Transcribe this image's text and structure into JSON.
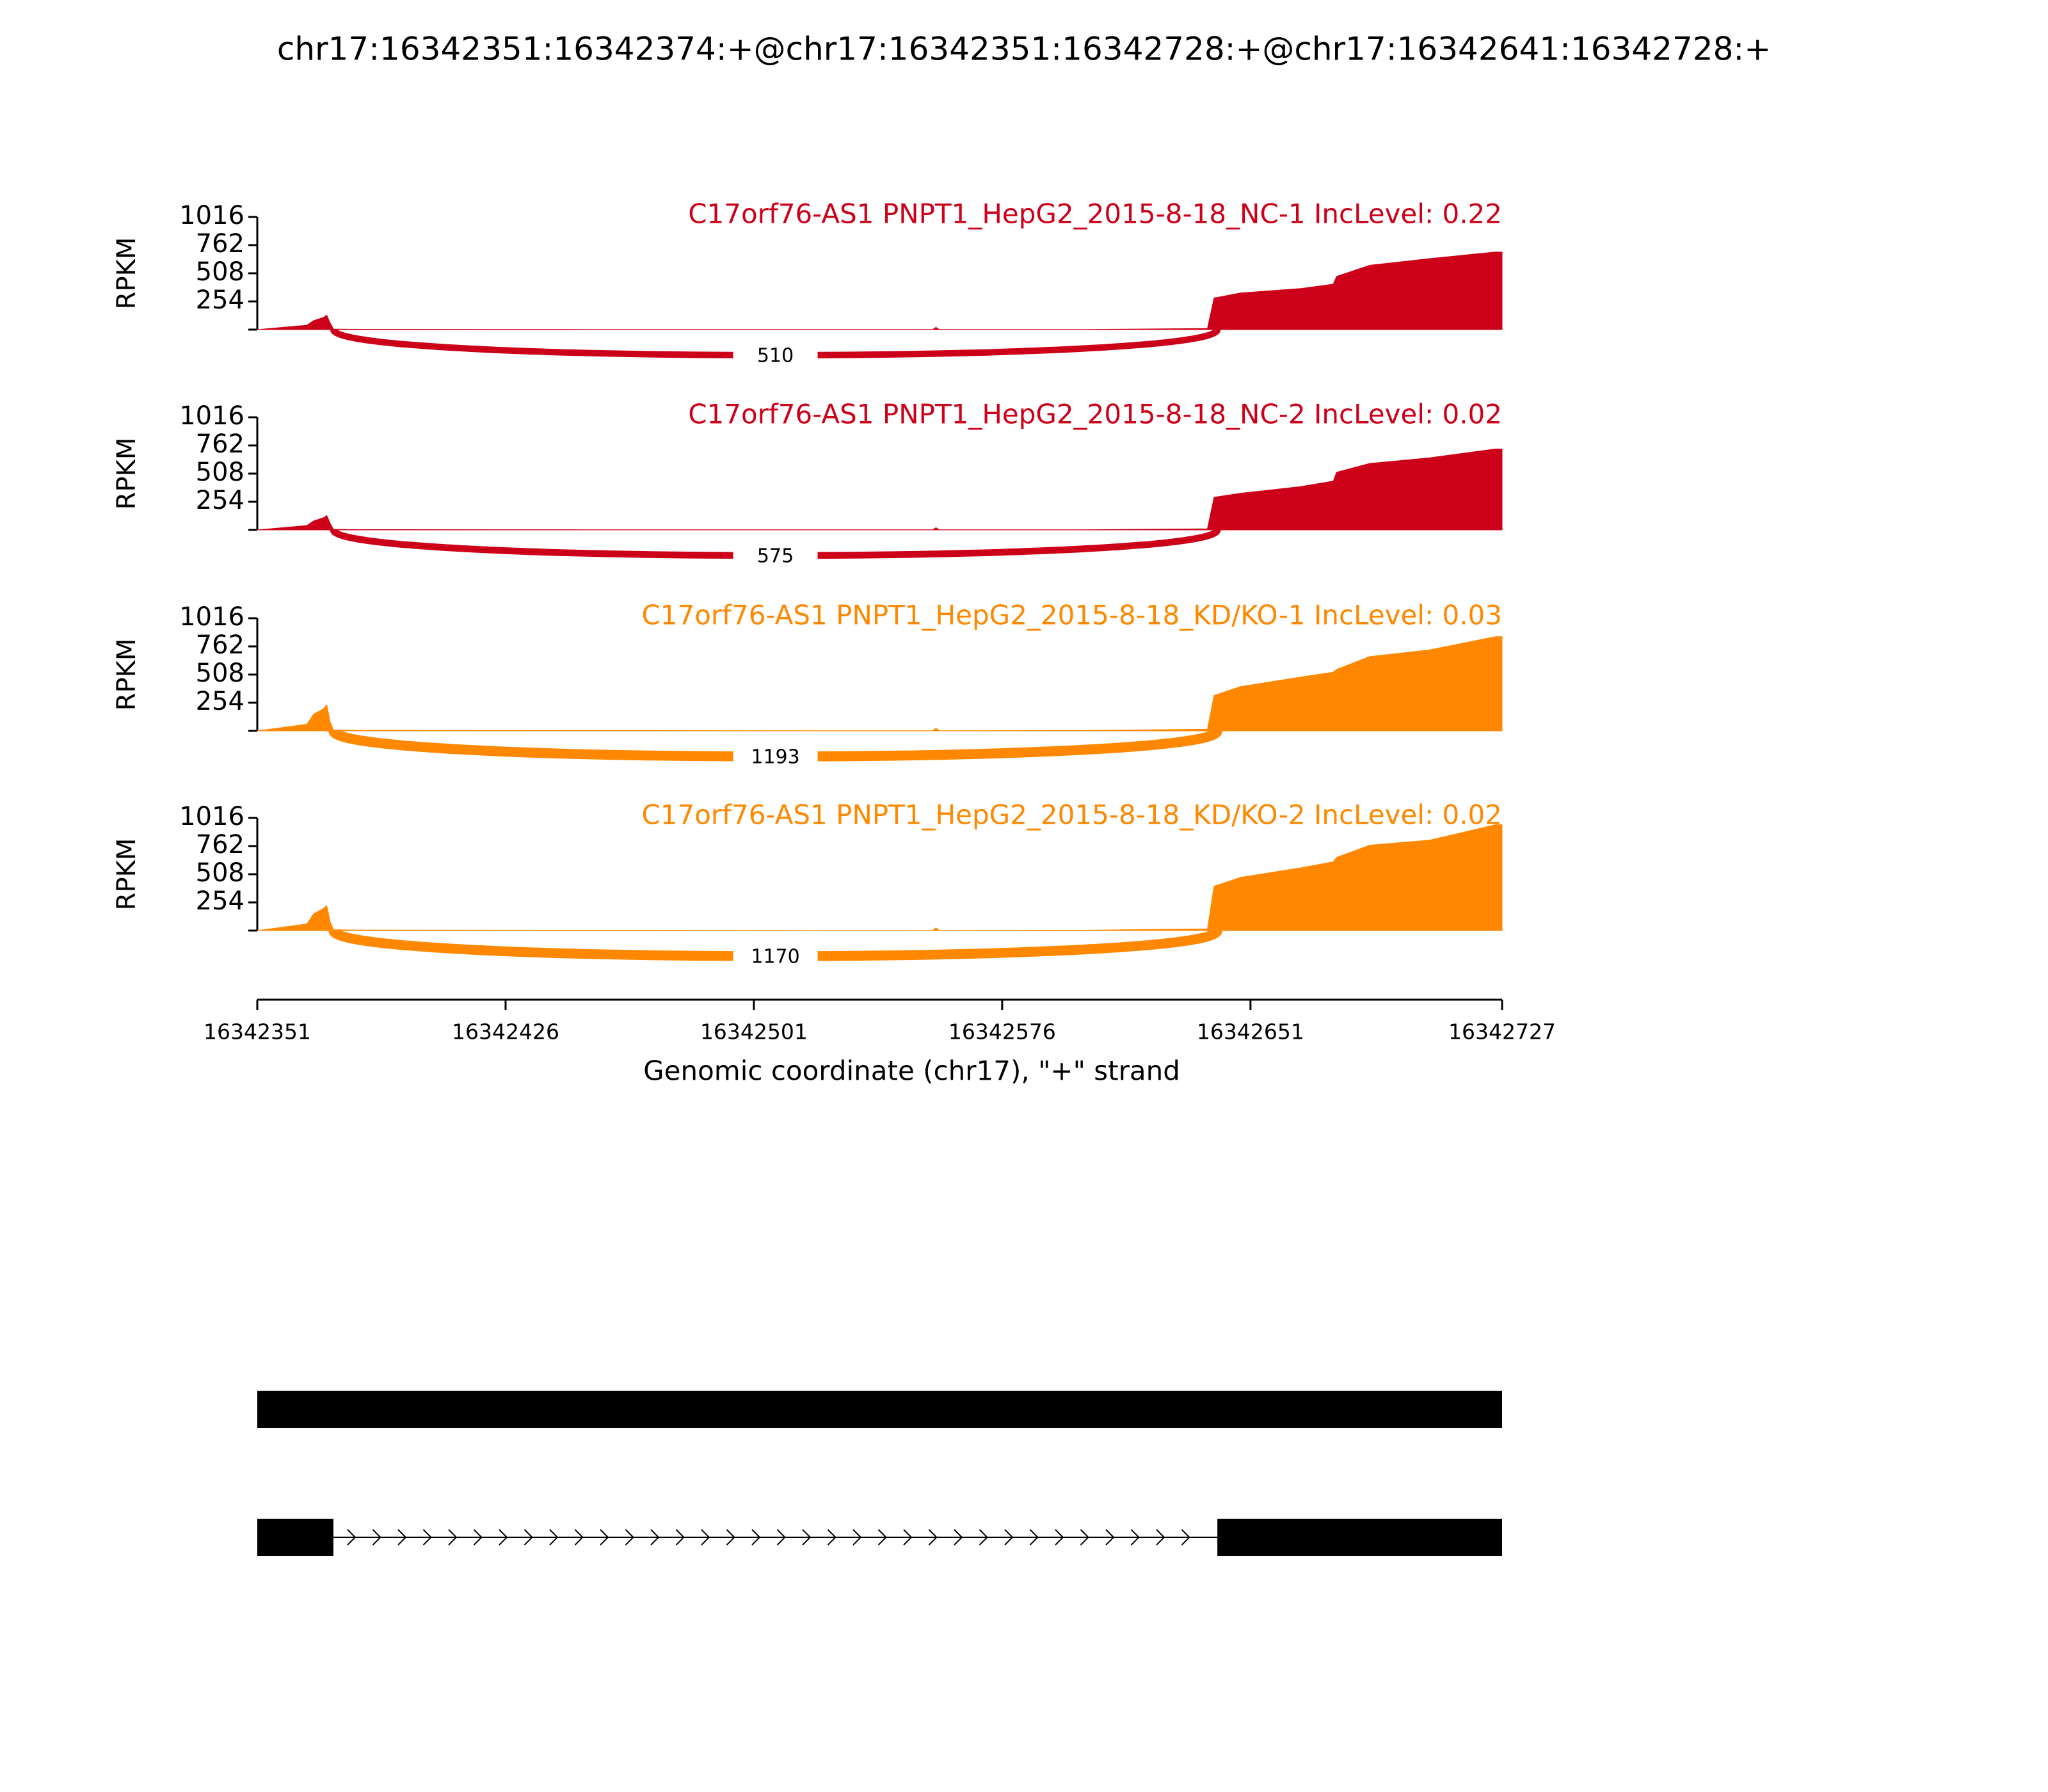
{
  "title": "chr17:16342351:16342374:+@chr17:16342351:16342728:+@chr17:16342641:16342728:+",
  "x_axis": {
    "xlim": [
      16342351,
      16342727
    ],
    "xticks": [
      16342351,
      16342426,
      16342501,
      16342576,
      16342651,
      16342727
    ],
    "xlabel": "Genomic coordinate (chr17), \"+\" strand"
  },
  "chart_data": [
    {
      "type": "area",
      "title": "C17orf76-AS1 PNPT1_HepG2_2015-8-18_NC-1 IncLevel: 0.22",
      "ylabel": "RPKM",
      "color": "#cc0018",
      "ylim": [
        0,
        1016
      ],
      "yticks": [
        254,
        508,
        762,
        1016
      ],
      "junction_count": 510,
      "x": [
        16342351,
        16342366,
        16342368,
        16342371,
        16342372,
        16342373,
        16342374,
        16342380,
        16342450,
        16342520,
        16342555,
        16342556,
        16342557,
        16342600,
        16342638,
        16342640,
        16342648,
        16342666,
        16342676,
        16342677,
        16342687,
        16342705,
        16342725,
        16342727
      ],
      "values": [
        0,
        40,
        80,
        110,
        130,
        60,
        5,
        3,
        2,
        1,
        1,
        20,
        1,
        2,
        10,
        285,
        330,
        370,
        410,
        480,
        580,
        640,
        700,
        700
      ]
    },
    {
      "type": "area",
      "title": "C17orf76-AS1 PNPT1_HepG2_2015-8-18_NC-2 IncLevel: 0.02",
      "ylabel": "RPKM",
      "color": "#cc0018",
      "ylim": [
        0,
        1016
      ],
      "yticks": [
        254,
        508,
        762,
        1016
      ],
      "junction_count": 575,
      "x": [
        16342351,
        16342366,
        16342368,
        16342371,
        16342372,
        16342373,
        16342374,
        16342380,
        16342450,
        16342520,
        16342555,
        16342556,
        16342557,
        16342600,
        16342638,
        16342640,
        16342648,
        16342666,
        16342676,
        16342677,
        16342687,
        16342705,
        16342725,
        16342727
      ],
      "values": [
        0,
        40,
        80,
        110,
        130,
        60,
        5,
        3,
        2,
        1,
        1,
        20,
        1,
        2,
        10,
        295,
        330,
        390,
        440,
        520,
        600,
        650,
        730,
        730
      ]
    },
    {
      "type": "area",
      "title": "C17orf76-AS1 PNPT1_HepG2_2015-8-18_KD/KO-1 IncLevel: 0.03",
      "ylabel": "RPKM",
      "color": "#ff8800",
      "ylim": [
        0,
        1016
      ],
      "yticks": [
        254,
        508,
        762,
        1016
      ],
      "junction_count": 1193,
      "x": [
        16342351,
        16342366,
        16342368,
        16342371,
        16342372,
        16342373,
        16342374,
        16342380,
        16342450,
        16342520,
        16342555,
        16342556,
        16342557,
        16342600,
        16342638,
        16342640,
        16342648,
        16342666,
        16342676,
        16342677,
        16342687,
        16342705,
        16342725,
        16342727
      ],
      "values": [
        0,
        60,
        150,
        200,
        235,
        80,
        8,
        5,
        3,
        2,
        2,
        25,
        2,
        3,
        15,
        320,
        400,
        485,
        530,
        555,
        670,
        730,
        850,
        850
      ]
    },
    {
      "type": "area",
      "title": "C17orf76-AS1 PNPT1_HepG2_2015-8-18_KD/KO-2 IncLevel: 0.02",
      "ylabel": "RPKM",
      "color": "#ff8800",
      "ylim": [
        0,
        1016
      ],
      "yticks": [
        254,
        508,
        762,
        1016
      ],
      "junction_count": 1170,
      "x": [
        16342351,
        16342366,
        16342368,
        16342371,
        16342372,
        16342373,
        16342374,
        16342380,
        16342450,
        16342520,
        16342555,
        16342556,
        16342557,
        16342600,
        16342638,
        16342640,
        16342648,
        16342666,
        16342676,
        16342677,
        16342687,
        16342705,
        16342725,
        16342727
      ],
      "values": [
        0,
        60,
        150,
        200,
        225,
        80,
        8,
        5,
        3,
        2,
        2,
        25,
        2,
        3,
        15,
        400,
        480,
        565,
        620,
        660,
        770,
        815,
        955,
        955
      ]
    }
  ],
  "gene_model": {
    "transcripts": [
      {
        "exons": [
          [
            16342351,
            16342727
          ]
        ]
      },
      {
        "exons": [
          [
            16342351,
            16342374
          ],
          [
            16342641,
            16342727
          ]
        ]
      }
    ]
  }
}
